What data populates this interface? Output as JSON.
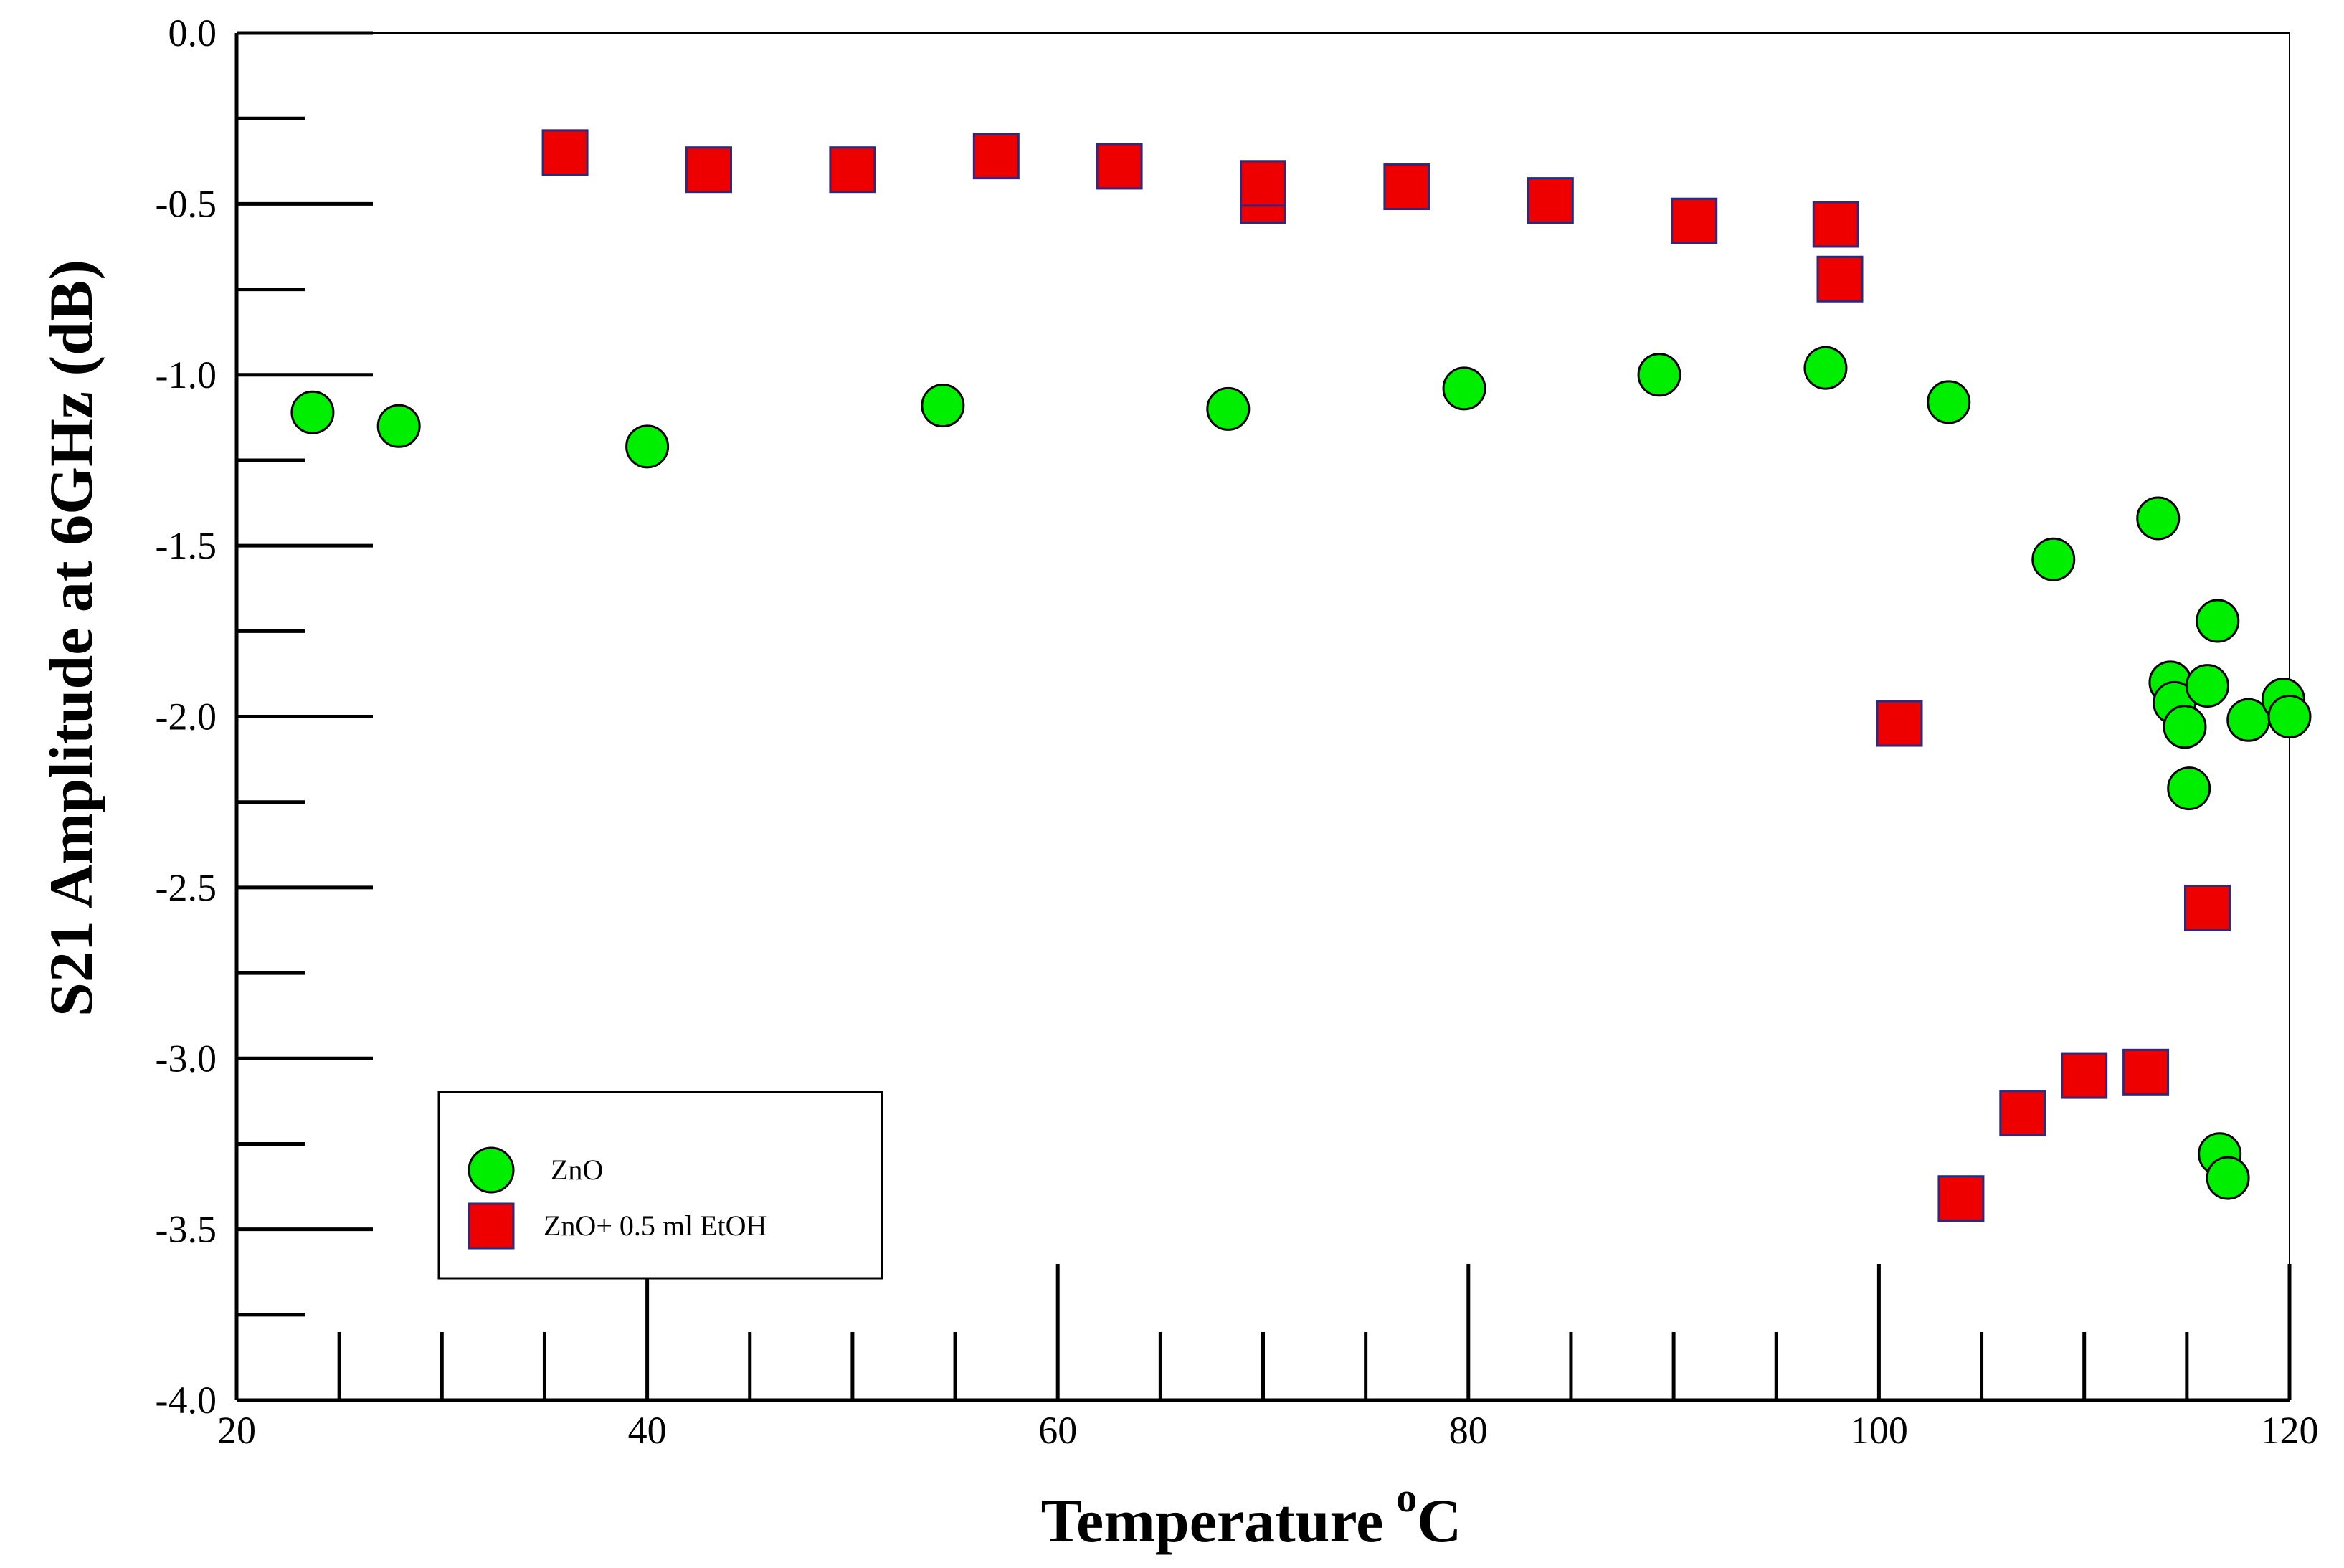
{
  "chart_data": {
    "type": "scatter",
    "title": "",
    "xlabel": "Temperature",
    "xlabel_superscript": "o",
    "xlabel_unit": "C",
    "ylabel": "S21 Amplitude at 6GHz (dB)",
    "xlim": [
      20,
      120
    ],
    "ylim": [
      -4.0,
      0.0
    ],
    "x_ticks": [
      20,
      40,
      60,
      80,
      100,
      120
    ],
    "x_tick_labels": [
      "20",
      "40",
      "60",
      "80",
      "100",
      "120"
    ],
    "y_ticks": [
      0.0,
      -0.5,
      -1.0,
      -1.5,
      -2.0,
      -2.5,
      -3.0,
      -3.5,
      -4.0
    ],
    "y_tick_labels": [
      "0.0",
      "-0.5",
      "-1.0",
      "-1.5",
      "-2.0",
      "-2.5",
      "-3.0",
      "-3.5",
      "-4.0"
    ],
    "grid": false,
    "legend_position": "bottom-left",
    "series": [
      {
        "name": "ZnO",
        "marker": "circle",
        "color": "#00ee00",
        "edge_color": "#000000",
        "x": [
          23.7,
          27.9,
          40.0,
          54.4,
          68.3,
          79.8,
          89.3,
          97.4,
          103.4,
          108.5,
          113.6,
          114.2,
          114.4,
          114.9,
          115.1,
          116.0,
          116.5,
          116.6,
          117.0,
          118.0,
          119.7,
          120.0
        ],
        "y": [
          -1.11,
          -1.15,
          -1.21,
          -1.09,
          -1.1,
          -1.04,
          -1.0,
          -0.98,
          -1.08,
          -1.54,
          -1.42,
          -1.9,
          -1.96,
          -2.03,
          -2.21,
          -1.91,
          -1.72,
          -3.28,
          -3.35,
          -2.01,
          -1.95,
          -2.0
        ]
      },
      {
        "name": "ZnO+ 0.5 ml EtOH",
        "marker": "square",
        "color": "#ee0000",
        "edge_color": "#2a2a80",
        "x": [
          36.0,
          43.0,
          50.0,
          57.0,
          63.0,
          70.0,
          70.0,
          77.0,
          84.0,
          91.0,
          97.9,
          98.1,
          101.0,
          104.0,
          107.0,
          110.0,
          113.0,
          116.0
        ],
        "y": [
          -0.35,
          -0.4,
          -0.4,
          -0.36,
          -0.39,
          -0.49,
          -0.44,
          -0.45,
          -0.49,
          -0.55,
          -0.56,
          -0.72,
          -2.02,
          -3.41,
          -3.16,
          -3.05,
          -3.04,
          -2.56
        ]
      }
    ]
  }
}
